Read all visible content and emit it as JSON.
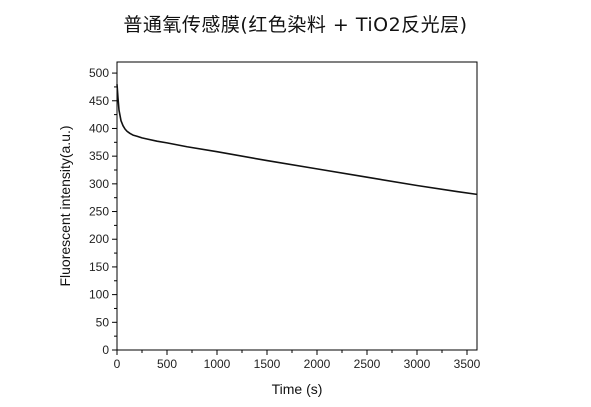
{
  "chart_data": {
    "type": "line",
    "title": "普通氧传感膜(红色染料 + TiO2反光层)",
    "xlabel": "Time (s)",
    "ylabel": "Fluorescent intensity(a.u.)",
    "xlim": [
      0,
      3600
    ],
    "ylim": [
      0,
      520
    ],
    "xticks": [
      0,
      500,
      1000,
      1500,
      2000,
      2500,
      3000,
      3500
    ],
    "yticks": [
      0,
      50,
      100,
      150,
      200,
      250,
      300,
      350,
      400,
      450,
      500
    ],
    "grid": false,
    "legend": "none",
    "line_color": "#111111",
    "series": [
      {
        "x": [
          0,
          10,
          20,
          40,
          60,
          80,
          100,
          130,
          160,
          200,
          250,
          300,
          400,
          500,
          700,
          1000,
          1500,
          2000,
          2500,
          3000,
          3400,
          3600
        ],
        "y": [
          480,
          455,
          433,
          414,
          405,
          399,
          395,
          391,
          388,
          386,
          383,
          381,
          377,
          374,
          367,
          358,
          342,
          327,
          312,
          297,
          286,
          281
        ]
      }
    ]
  }
}
